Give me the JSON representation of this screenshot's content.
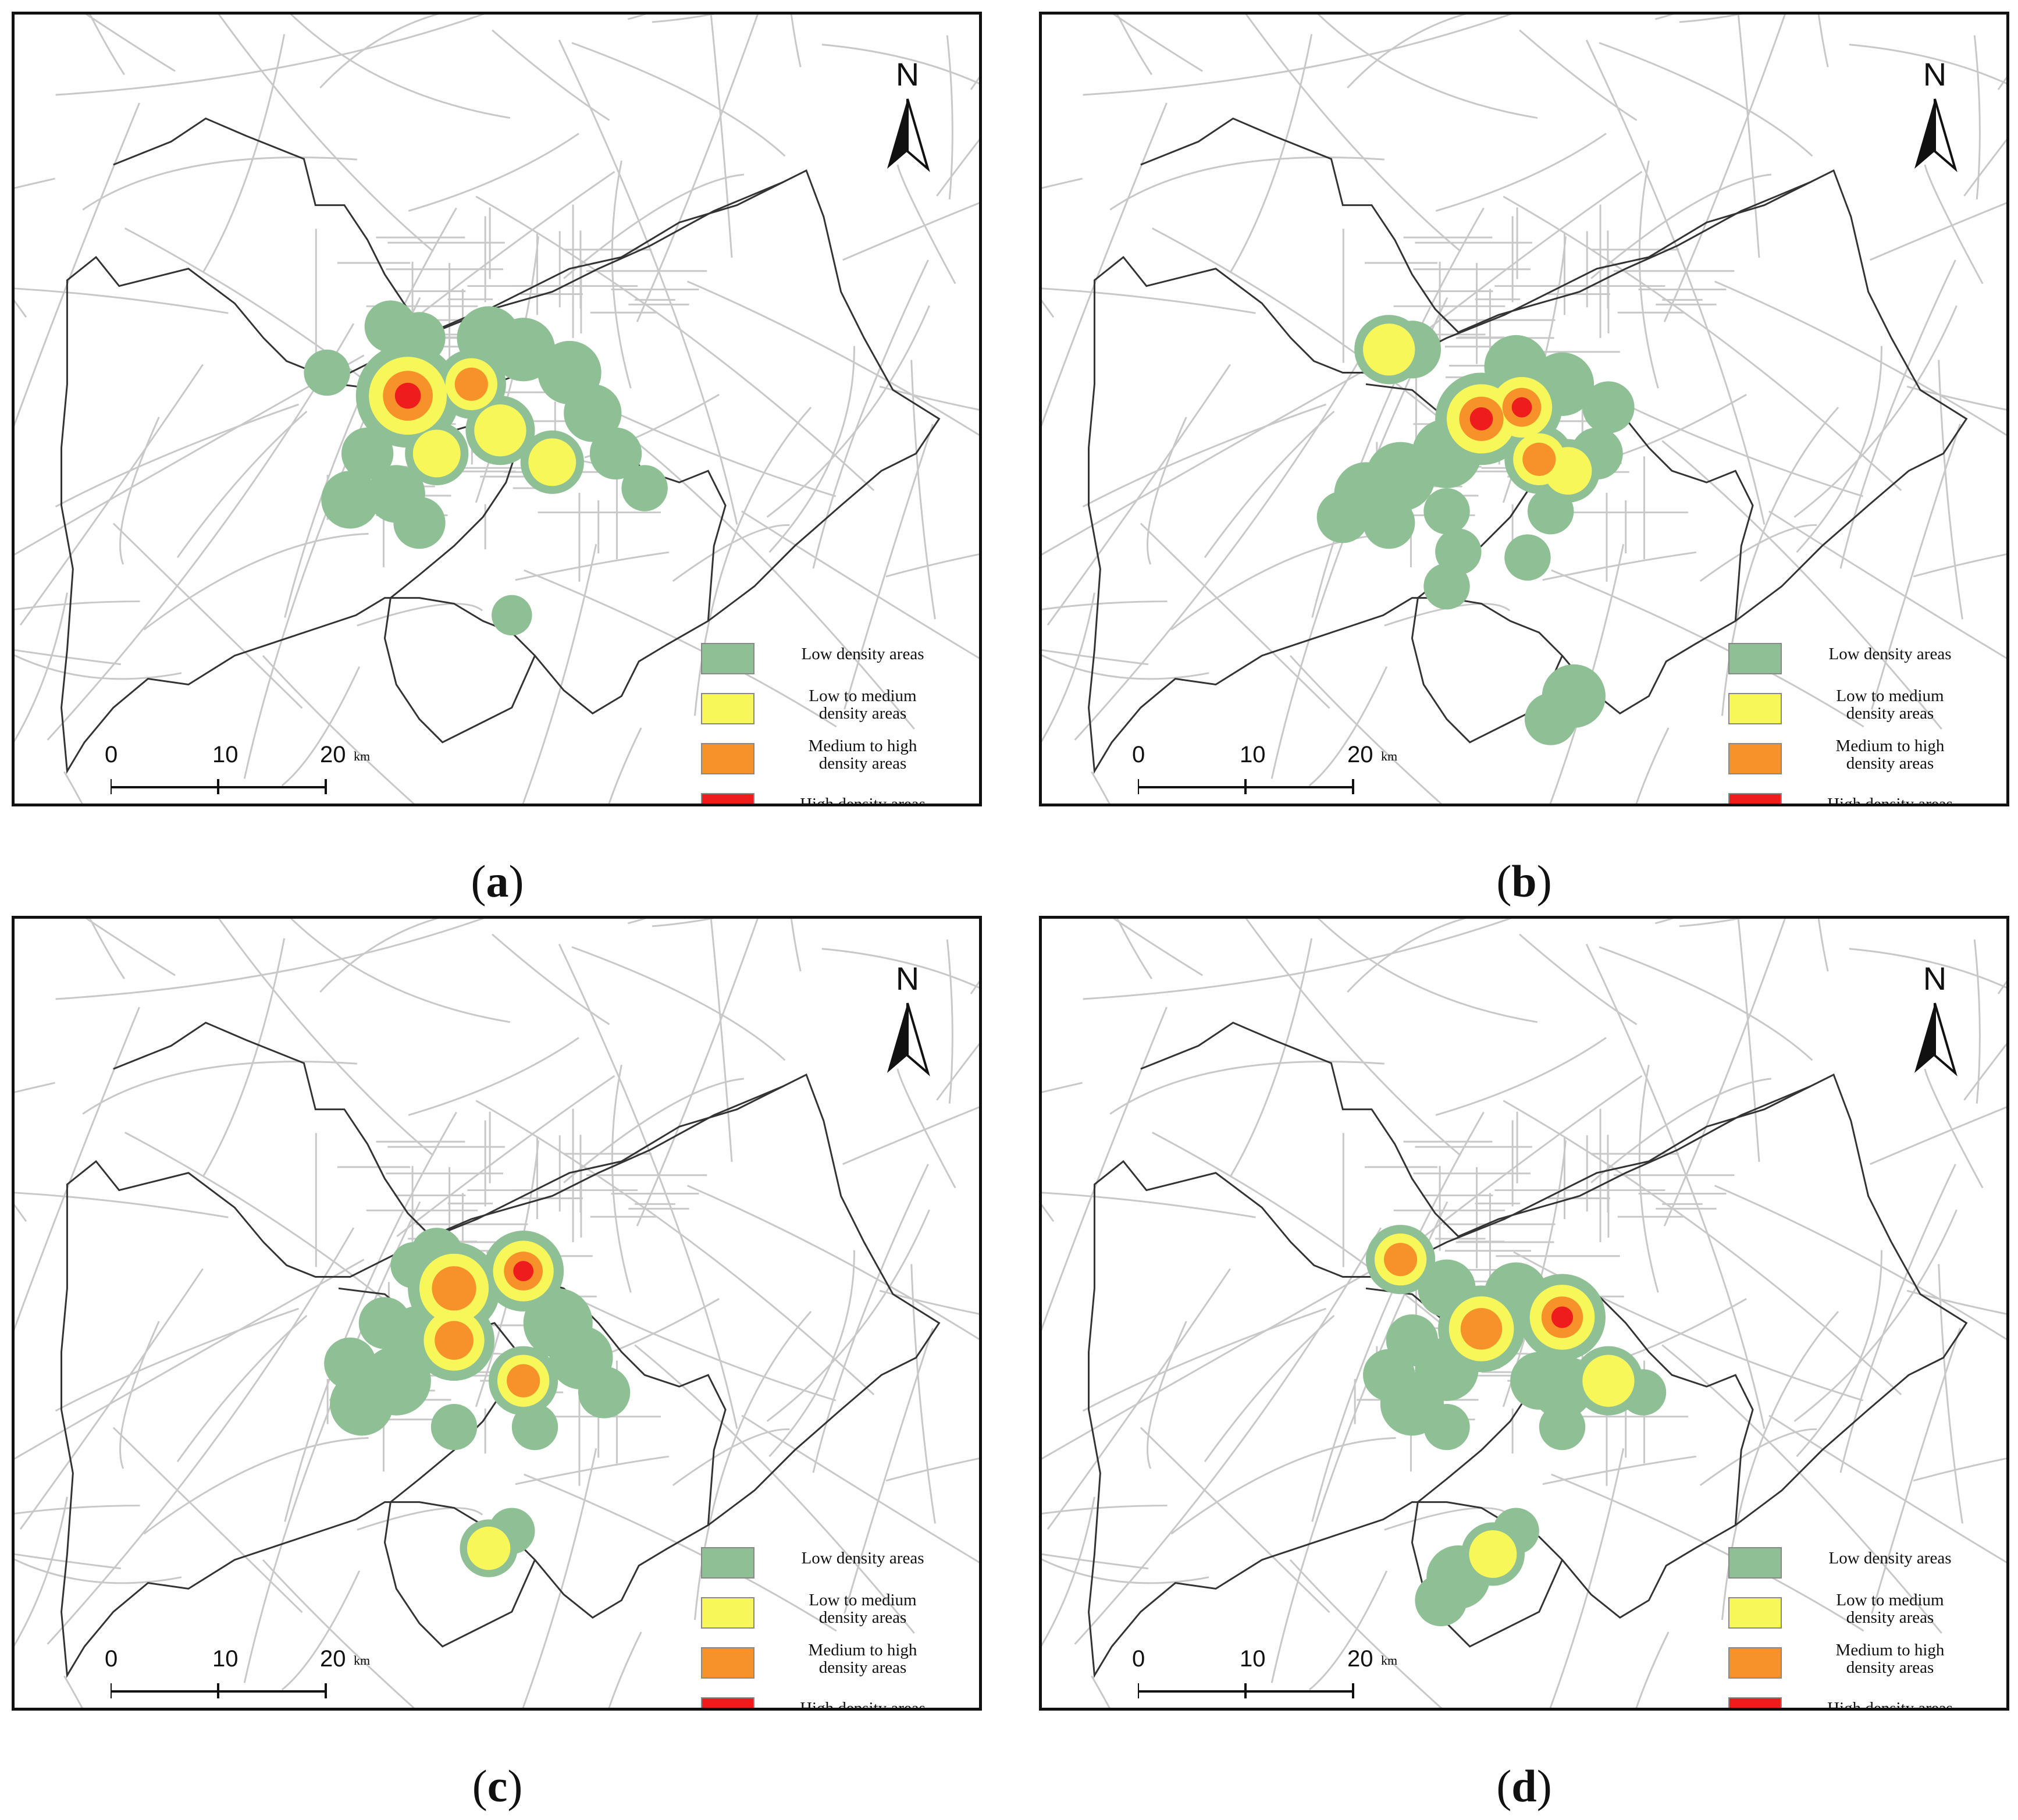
{
  "legend": {
    "items": [
      {
        "label_lines": [
          "Low density areas"
        ],
        "color": "#8fbf94"
      },
      {
        "label_lines": [
          "Low to medium",
          "density areas"
        ],
        "color": "#f7f75a"
      },
      {
        "label_lines": [
          "Medium to high",
          "density areas"
        ],
        "color": "#f7922a"
      },
      {
        "label_lines": [
          "High density areas"
        ],
        "color": "#ee1c1c"
      }
    ]
  },
  "north_label": "N",
  "scale_bar": {
    "ticks": [
      "0",
      "10",
      "20"
    ],
    "unit": "km"
  },
  "colors": {
    "road": "#c8c8c8",
    "boundary": "#333333",
    "frame": "#111111"
  },
  "panels": [
    {
      "caption_letter": "a"
    },
    {
      "caption_letter": "b"
    },
    {
      "caption_letter": "c"
    },
    {
      "caption_letter": "d"
    }
  ]
}
